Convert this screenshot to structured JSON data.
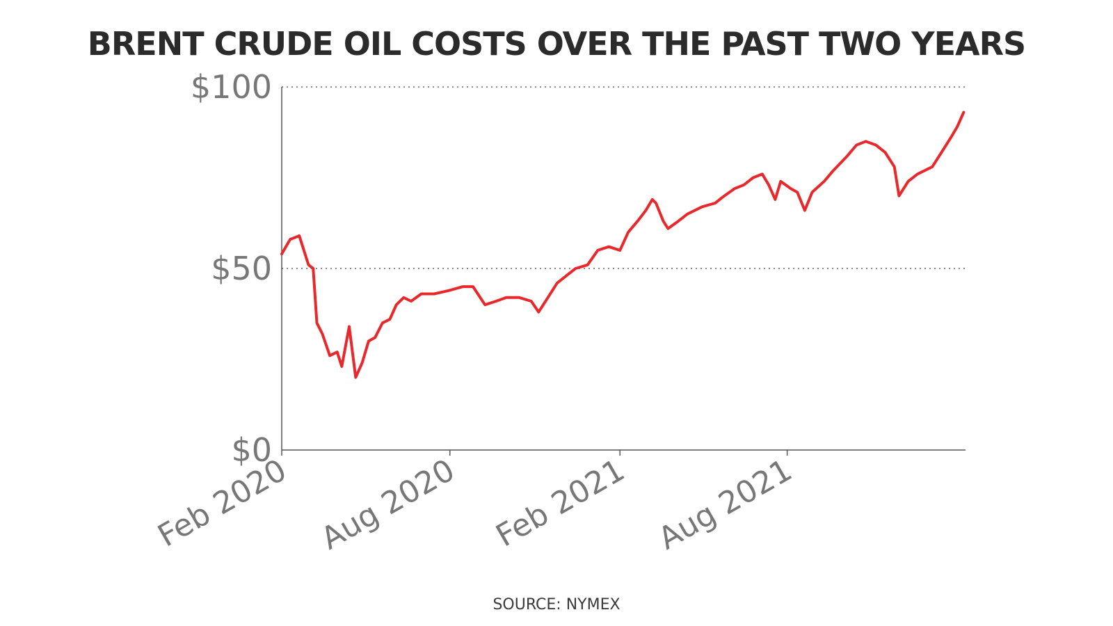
{
  "title": "BRENT CRUDE OIL COSTS OVER THE PAST TWO YEARS",
  "source": "SOURCE: NYMEX",
  "colors": {
    "line": "#e8282b",
    "axis": "#555555",
    "grid": "#666666",
    "tick_text": "#777777",
    "title_text": "#2b2b2b"
  },
  "chart_data": {
    "type": "line",
    "title": "BRENT CRUDE OIL COSTS OVER THE PAST TWO YEARS",
    "xlabel": "",
    "ylabel": "",
    "ylim": [
      0,
      100
    ],
    "xlim": [
      "2020-02-01",
      "2022-02-10"
    ],
    "yticks": [
      {
        "value": 0,
        "label": "$0"
      },
      {
        "value": 50,
        "label": "$50"
      },
      {
        "value": 100,
        "label": "$100"
      }
    ],
    "xticks": [
      {
        "value": "2020-02-01",
        "label": "Feb 2020"
      },
      {
        "value": "2020-08-01",
        "label": "Aug 2020"
      },
      {
        "value": "2021-02-01",
        "label": "Feb 2021"
      },
      {
        "value": "2021-08-01",
        "label": "Aug 2021"
      }
    ],
    "grid": "horizontal dotted lines at $50 and $100",
    "legend": "none",
    "series": [
      {
        "x": [
          "2020-02-01",
          "2020-02-10",
          "2020-02-20",
          "2020-03-01",
          "2020-03-06",
          "2020-03-10",
          "2020-03-16",
          "2020-03-24",
          "2020-04-01",
          "2020-04-06",
          "2020-04-14",
          "2020-04-21",
          "2020-04-28",
          "2020-05-05",
          "2020-05-12",
          "2020-05-20",
          "2020-05-28",
          "2020-06-04",
          "2020-06-12",
          "2020-06-20",
          "2020-07-01",
          "2020-07-15",
          "2020-08-01",
          "2020-08-15",
          "2020-08-26",
          "2020-09-08",
          "2020-09-20",
          "2020-10-01",
          "2020-10-15",
          "2020-10-28",
          "2020-11-05",
          "2020-11-15",
          "2020-11-25",
          "2020-12-05",
          "2020-12-15",
          "2020-12-28",
          "2021-01-08",
          "2021-01-20",
          "2021-02-01",
          "2021-02-10",
          "2021-02-20",
          "2021-03-01",
          "2021-03-08",
          "2021-03-12",
          "2021-03-20",
          "2021-03-25",
          "2021-04-05",
          "2021-04-15",
          "2021-05-01",
          "2021-05-15",
          "2021-05-25",
          "2021-06-05",
          "2021-06-15",
          "2021-06-25",
          "2021-07-05",
          "2021-07-12",
          "2021-07-19",
          "2021-07-25",
          "2021-08-05",
          "2021-08-12",
          "2021-08-20",
          "2021-08-28",
          "2021-09-10",
          "2021-09-20",
          "2021-10-05",
          "2021-10-15",
          "2021-10-25",
          "2021-11-05",
          "2021-11-15",
          "2021-11-25",
          "2021-11-30",
          "2021-12-10",
          "2021-12-20",
          "2022-01-05",
          "2022-01-15",
          "2022-01-25",
          "2022-02-01",
          "2022-02-08"
        ],
        "y": [
          54,
          58,
          59,
          51,
          50,
          35,
          32,
          26,
          27,
          23,
          34,
          20,
          24,
          30,
          31,
          35,
          36,
          40,
          42,
          41,
          43,
          43,
          44,
          45,
          45,
          40,
          41,
          42,
          42,
          41,
          38,
          42,
          46,
          48,
          50,
          51,
          55,
          56,
          55,
          60,
          63,
          66,
          69,
          68,
          63,
          61,
          63,
          65,
          67,
          68,
          70,
          72,
          73,
          75,
          76,
          73,
          69,
          74,
          72,
          71,
          66,
          71,
          74,
          77,
          81,
          84,
          85,
          84,
          82,
          78,
          70,
          74,
          76,
          78,
          82,
          86,
          89,
          93
        ]
      }
    ]
  }
}
